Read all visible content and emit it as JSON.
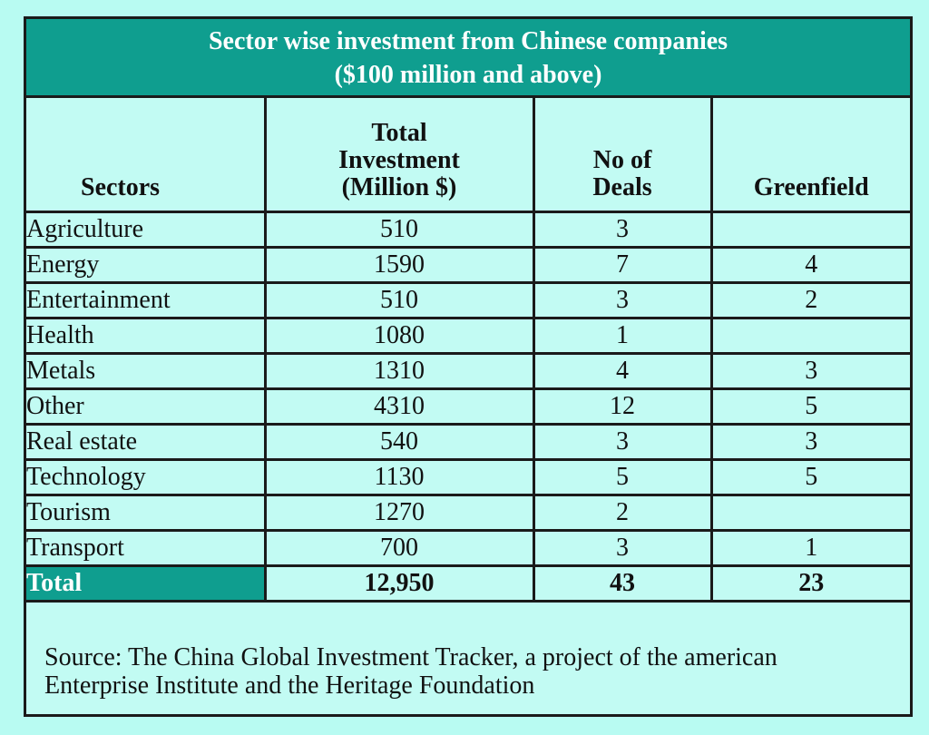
{
  "title": {
    "line1": "Sector wise investment from Chinese companies",
    "line2": "($100 million and above)"
  },
  "colors": {
    "background": "#b8fbf2",
    "header_fill": "#0f9e8f",
    "header_text": "#ffffff",
    "border": "#1a1a1a"
  },
  "chart_data": {
    "type": "table",
    "title": "Sector wise investment from Chinese companies ($100 million and above)",
    "columns": [
      "Sectors",
      "Total Investment (Million $)",
      "No of Deals",
      "Greenfield"
    ],
    "rows": [
      {
        "sector": "Agriculture",
        "investment": "510",
        "deals": "3",
        "greenfield": ""
      },
      {
        "sector": "Energy",
        "investment": "1590",
        "deals": "7",
        "greenfield": "4"
      },
      {
        "sector": "Entertainment",
        "investment": "510",
        "deals": "3",
        "greenfield": "2"
      },
      {
        "sector": "Health",
        "investment": "1080",
        "deals": "1",
        "greenfield": ""
      },
      {
        "sector": "Metals",
        "investment": "1310",
        "deals": "4",
        "greenfield": "3"
      },
      {
        "sector": "Other",
        "investment": "4310",
        "deals": "12",
        "greenfield": "5"
      },
      {
        "sector": "Real estate",
        "investment": "540",
        "deals": "3",
        "greenfield": "3"
      },
      {
        "sector": "Technology",
        "investment": "1130",
        "deals": "5",
        "greenfield": "5"
      },
      {
        "sector": "Tourism",
        "investment": "1270",
        "deals": "2",
        "greenfield": ""
      },
      {
        "sector": "Transport",
        "investment": "700",
        "deals": "3",
        "greenfield": "1"
      }
    ],
    "total": {
      "label": "Total",
      "investment": "12,950",
      "deals": "43",
      "greenfield": "23"
    }
  },
  "header": {
    "sectors": "Sectors",
    "investment_l1": "Total",
    "investment_l2": "Investment",
    "investment_l3": "(Million $)",
    "deals_l1": "No of",
    "deals_l2": "Deals",
    "greenfield": "Greenfield"
  },
  "source": {
    "line1": "Source: The China Global Investment Tracker, a project of the american",
    "line2": "Enterprise Institute and the Heritage Foundation"
  }
}
